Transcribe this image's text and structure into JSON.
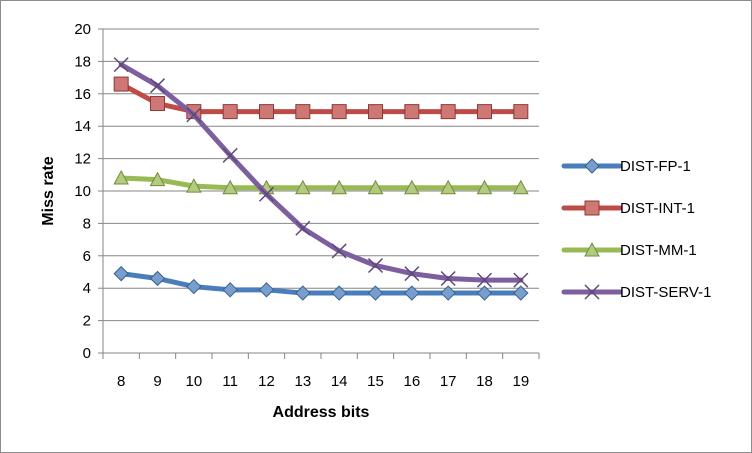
{
  "chart_data": {
    "type": "line",
    "title": "",
    "xlabel": "Address bits",
    "ylabel": "Miss rate",
    "x": [
      8,
      9,
      10,
      11,
      12,
      13,
      14,
      15,
      16,
      17,
      18,
      19
    ],
    "ylim": [
      0,
      20
    ],
    "yticks": [
      0,
      2,
      4,
      6,
      8,
      10,
      12,
      14,
      16,
      18,
      20
    ],
    "grid": true,
    "legend_position": "right",
    "series": [
      {
        "name": "DIST-FP-1",
        "color": "#4a7ebb",
        "marker": "diamond",
        "values": [
          4.9,
          4.6,
          4.1,
          3.9,
          3.9,
          3.7,
          3.7,
          3.7,
          3.7,
          3.7,
          3.7,
          3.7
        ]
      },
      {
        "name": "DIST-INT-1",
        "color": "#be4b48",
        "marker": "square",
        "values": [
          16.6,
          15.4,
          14.9,
          14.9,
          14.9,
          14.9,
          14.9,
          14.9,
          14.9,
          14.9,
          14.9,
          14.9
        ]
      },
      {
        "name": "DIST-MM-1",
        "color": "#98b954",
        "marker": "triangle",
        "values": [
          10.8,
          10.7,
          10.3,
          10.2,
          10.2,
          10.2,
          10.2,
          10.2,
          10.2,
          10.2,
          10.2,
          10.2
        ]
      },
      {
        "name": "DIST-SERV-1",
        "color": "#7d5fa0",
        "marker": "x",
        "values": [
          17.8,
          16.5,
          14.7,
          12.2,
          9.8,
          7.7,
          6.3,
          5.4,
          4.9,
          4.6,
          4.5,
          4.5
        ]
      }
    ]
  }
}
